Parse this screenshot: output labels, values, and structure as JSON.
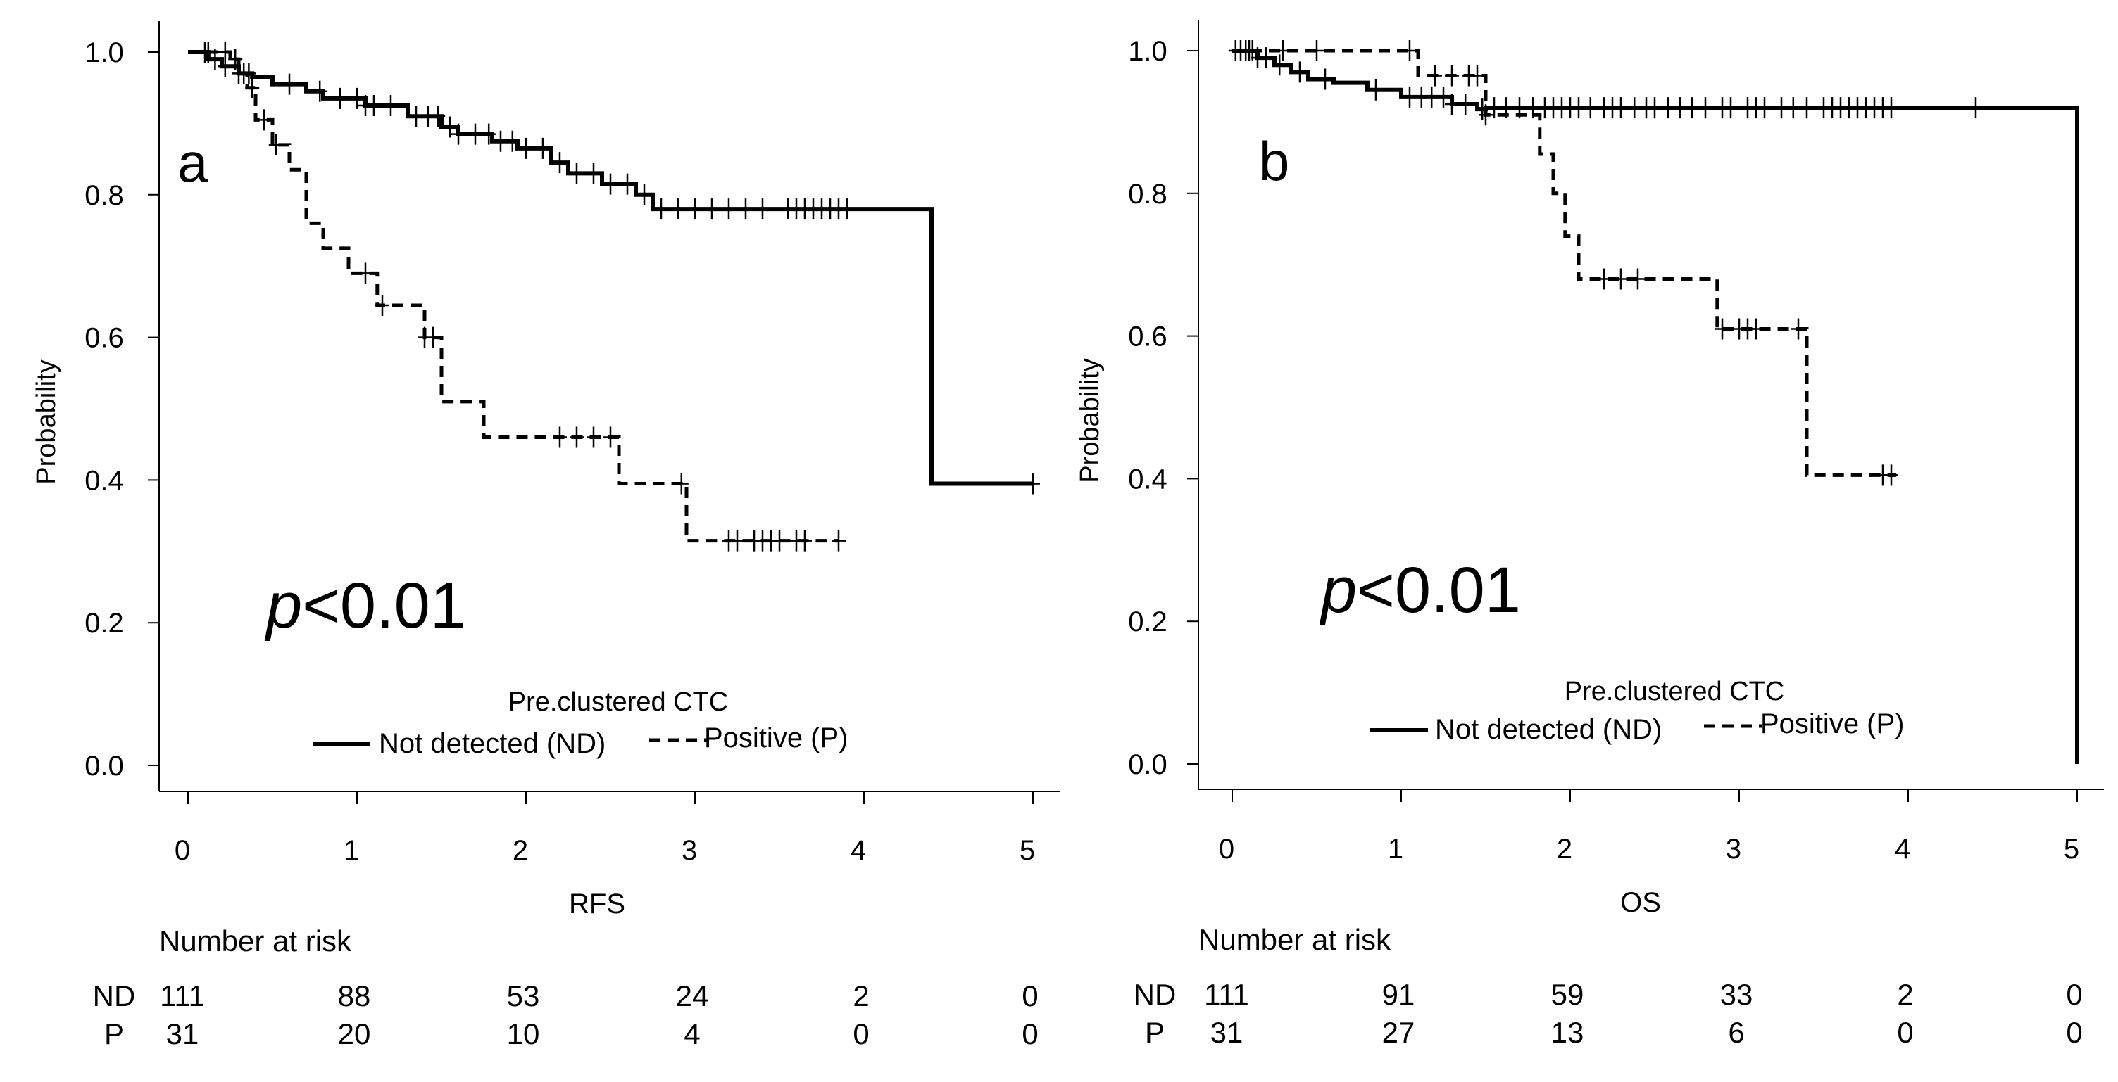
{
  "chart_data": [
    {
      "type": "line",
      "subtype": "kaplan-meier",
      "panel_label": "a",
      "xlabel": "RFS",
      "ylabel": "Probability",
      "xlim": [
        0,
        5
      ],
      "ylim": [
        0,
        1
      ],
      "x_ticks": [
        "0",
        "1",
        "2",
        "3",
        "4",
        "5"
      ],
      "y_ticks": [
        "0.0",
        "0.2",
        "0.4",
        "0.6",
        "0.8",
        "1.0"
      ],
      "annotation": {
        "p_italic": "p",
        "p_rest": "<0.01"
      },
      "legend": {
        "title": "Pre.clustered CTC",
        "entries": [
          {
            "label": "Not detected (ND)",
            "style": "solid"
          },
          {
            "label": "Positive (P)",
            "style": "dashed"
          }
        ]
      },
      "series": [
        {
          "name": "Not detected (ND)",
          "style": "solid",
          "x": [
            0,
            0.12,
            0.2,
            0.3,
            0.38,
            0.5,
            0.7,
            0.8,
            1.05,
            1.3,
            1.5,
            1.6,
            1.8,
            1.95,
            2.15,
            2.25,
            2.45,
            2.65,
            2.75,
            4.4,
            5.0
          ],
          "y": [
            1.0,
            0.99,
            0.98,
            0.97,
            0.965,
            0.955,
            0.945,
            0.935,
            0.925,
            0.91,
            0.895,
            0.885,
            0.875,
            0.865,
            0.845,
            0.83,
            0.815,
            0.8,
            0.78,
            0.395,
            0.395
          ],
          "censor_x": [
            0.1,
            0.16,
            0.22,
            0.3,
            0.36,
            0.6,
            0.78,
            0.9,
            1.0,
            1.05,
            1.1,
            1.2,
            1.35,
            1.42,
            1.48,
            1.55,
            1.6,
            1.7,
            1.78,
            1.85,
            1.92,
            2.0,
            2.1,
            2.2,
            2.3,
            2.4,
            2.5,
            2.6,
            2.7,
            2.8,
            2.9,
            3.0,
            3.1,
            3.2,
            3.3,
            3.4,
            3.55,
            3.6,
            3.65,
            3.7,
            3.75,
            3.8,
            3.85,
            3.9,
            5.0
          ]
        },
        {
          "name": "Positive (P)",
          "style": "dashed",
          "x": [
            0,
            0.25,
            0.3,
            0.35,
            0.4,
            0.5,
            0.6,
            0.7,
            0.8,
            0.95,
            1.12,
            1.4,
            1.5,
            1.75,
            2.55,
            2.95,
            3.85
          ],
          "y": [
            1.0,
            0.99,
            0.97,
            0.95,
            0.905,
            0.87,
            0.835,
            0.76,
            0.725,
            0.69,
            0.645,
            0.6,
            0.51,
            0.46,
            0.395,
            0.315,
            0.315
          ],
          "censor_x": [
            0.12,
            0.22,
            0.28,
            0.33,
            0.38,
            0.45,
            0.52,
            1.05,
            1.15,
            1.4,
            1.45,
            2.2,
            2.3,
            2.4,
            2.5,
            2.92,
            3.2,
            3.25,
            3.35,
            3.4,
            3.45,
            3.5,
            3.6,
            3.65,
            3.85
          ]
        }
      ],
      "number_at_risk": {
        "title": "Number at risk",
        "rows": [
          {
            "group": "ND",
            "values": [
              "111",
              "88",
              "53",
              "24",
              "2",
              "0"
            ]
          },
          {
            "group": "P",
            "values": [
              "31",
              "20",
              "10",
              "4",
              "0",
              "0"
            ]
          }
        ]
      }
    },
    {
      "type": "line",
      "subtype": "kaplan-meier",
      "panel_label": "b",
      "xlabel": "OS",
      "ylabel": "Probability",
      "xlim": [
        0,
        5
      ],
      "ylim": [
        0,
        1
      ],
      "x_ticks": [
        "0",
        "1",
        "2",
        "3",
        "4",
        "5"
      ],
      "y_ticks": [
        "0.0",
        "0.2",
        "0.4",
        "0.6",
        "0.8",
        "1.0"
      ],
      "annotation": {
        "p_italic": "p",
        "p_rest": "<0.01"
      },
      "legend": {
        "title": "Pre.clustered CTC",
        "entries": [
          {
            "label": "Not detected (ND)",
            "style": "solid"
          },
          {
            "label": "Positive (P)",
            "style": "dashed"
          }
        ]
      },
      "series": [
        {
          "name": "Not detected (ND)",
          "style": "solid",
          "x": [
            0,
            0.15,
            0.25,
            0.35,
            0.45,
            0.6,
            0.8,
            1.0,
            1.3,
            1.45,
            1.5,
            5.0,
            5.0
          ],
          "y": [
            1.0,
            0.99,
            0.98,
            0.97,
            0.96,
            0.955,
            0.945,
            0.935,
            0.925,
            0.918,
            0.92,
            0.92,
            0.0
          ],
          "censor_x": [
            0.02,
            0.05,
            0.08,
            0.1,
            0.12,
            0.15,
            0.2,
            0.28,
            0.4,
            0.55,
            0.85,
            1.05,
            1.12,
            1.18,
            1.25,
            1.3,
            1.38,
            1.48,
            1.55,
            1.62,
            1.7,
            1.78,
            1.85,
            1.9,
            1.95,
            2.0,
            2.05,
            2.12,
            2.2,
            2.25,
            2.3,
            2.38,
            2.45,
            2.5,
            2.58,
            2.65,
            2.72,
            2.8,
            2.9,
            2.95,
            3.05,
            3.1,
            3.15,
            3.25,
            3.32,
            3.4,
            3.5,
            3.55,
            3.6,
            3.65,
            3.7,
            3.75,
            3.8,
            3.85,
            3.9,
            4.4
          ]
        },
        {
          "name": "Positive (P)",
          "style": "dashed",
          "x": [
            0,
            0.3,
            1.05,
            1.1,
            1.5,
            1.82,
            1.9,
            1.97,
            2.05,
            2.87,
            3.4,
            3.93
          ],
          "y": [
            1.0,
            1.0,
            1.0,
            0.965,
            0.91,
            0.855,
            0.8,
            0.74,
            0.68,
            0.61,
            0.405,
            0.405
          ],
          "censor_x": [
            0.3,
            0.5,
            1.05,
            1.2,
            1.3,
            1.4,
            1.45,
            1.5,
            2.2,
            2.3,
            2.4,
            2.9,
            3.0,
            3.05,
            3.1,
            3.35,
            3.85,
            3.9
          ]
        }
      ],
      "number_at_risk": {
        "title": "Number at risk",
        "rows": [
          {
            "group": "ND",
            "values": [
              "111",
              "91",
              "59",
              "33",
              "2",
              "0"
            ]
          },
          {
            "group": "P",
            "values": [
              "31",
              "27",
              "13",
              "6",
              "0",
              "0"
            ]
          }
        ]
      }
    }
  ]
}
